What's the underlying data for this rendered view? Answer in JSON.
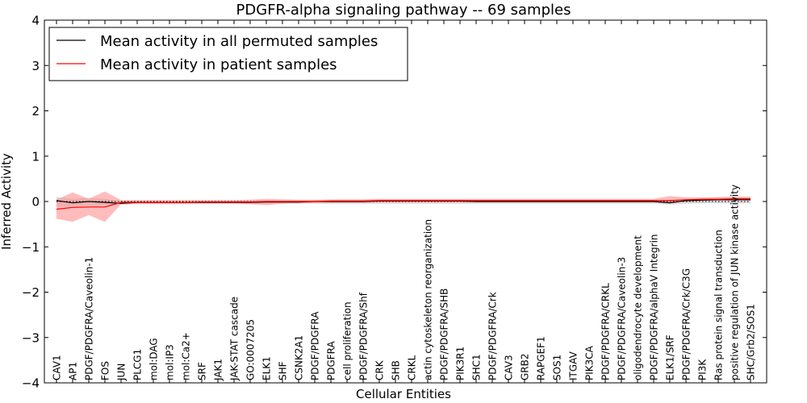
{
  "chart_data": {
    "type": "line",
    "title": "PDGFR-alpha signaling pathway -- 69 samples",
    "xlabel": "Cellular Entities",
    "ylabel": "Inferred Activity",
    "ylim": [
      -4,
      4
    ],
    "yticks": [
      -4,
      -3,
      -2,
      -1,
      0,
      1,
      2,
      3,
      4
    ],
    "ytick_labels": [
      "−4",
      "−3",
      "−2",
      "−1",
      "0",
      "1",
      "2",
      "3",
      "4"
    ],
    "grid": false,
    "legend_position": "top-left",
    "categories": [
      "CAV1",
      "AP1",
      "PDGF/PDGFRA/Caveolin-1",
      "FOS",
      "JUN",
      "PLCG1",
      "mol:DAG",
      "mol:IP3",
      "mol:Ca2+",
      "SRF",
      "JAK1",
      "JAK-STAT cascade",
      "GO:0007205",
      "ELK1",
      "SHF",
      "CSNK2A1",
      "PDGF/PDGFRA",
      "PDGFRA",
      "cell proliferation",
      "PDGF/PDGFRA/Shf",
      "CRK",
      "SHB",
      "CRKL",
      "actin cytoskeleton reorganization",
      "PDGF/PDGFRA/SHB",
      "PIK3R1",
      "SHC1",
      "PDGF/PDGFRA/Crk",
      "CAV3",
      "GRB2",
      "RAPGEF1",
      "SOS1",
      "ITGAV",
      "PIK3CA",
      "PDGF/PDGFRA/CRKL",
      "PDGF/PDGFRA/Caveolin-3",
      "oligodendrocyte development",
      "PDGF/PDGFRA/alphaV Integrin",
      "ELK1/SRF",
      "PDGF/PDGFRA/Crk/C3G",
      "PI3K",
      "Ras protein signal transduction",
      "positive regulation of JUN kinase activity",
      "SHC/Grb2/SOS1"
    ],
    "series": [
      {
        "name": "Mean activity in all permuted samples",
        "color": "#000000",
        "values": [
          0.02,
          -0.03,
          0.0,
          -0.02,
          -0.04,
          -0.02,
          -0.02,
          -0.02,
          -0.02,
          -0.02,
          -0.02,
          -0.02,
          -0.02,
          -0.01,
          -0.01,
          -0.01,
          0.0,
          0.0,
          0.0,
          0.0,
          0.01,
          0.01,
          0.01,
          0.01,
          0.01,
          0.01,
          0.0,
          0.0,
          0.0,
          0.0,
          0.0,
          0.0,
          0.0,
          0.0,
          0.0,
          0.0,
          0.0,
          0.0,
          -0.03,
          0.02,
          0.03,
          0.04,
          0.04,
          0.04
        ],
        "band_lower": [
          -0.12,
          -0.1,
          -0.08,
          -0.08,
          -0.07,
          -0.06,
          -0.06,
          -0.06,
          -0.06,
          -0.06,
          -0.06,
          -0.06,
          -0.06,
          -0.05,
          -0.05,
          -0.05,
          -0.05,
          -0.05,
          -0.05,
          -0.05,
          -0.05,
          -0.05,
          -0.05,
          -0.05,
          -0.05,
          -0.05,
          -0.05,
          -0.05,
          -0.05,
          -0.05,
          -0.05,
          -0.05,
          -0.05,
          -0.05,
          -0.05,
          -0.05,
          -0.05,
          -0.05,
          -0.07,
          -0.05,
          -0.04,
          -0.04,
          -0.04,
          -0.04
        ],
        "band_upper": [
          0.1,
          0.06,
          0.08,
          0.06,
          0.0,
          0.01,
          0.01,
          0.01,
          0.01,
          0.01,
          0.01,
          0.01,
          0.01,
          0.02,
          0.02,
          0.02,
          0.03,
          0.03,
          0.03,
          0.03,
          0.04,
          0.04,
          0.04,
          0.04,
          0.04,
          0.04,
          0.03,
          0.03,
          0.03,
          0.03,
          0.03,
          0.03,
          0.03,
          0.03,
          0.03,
          0.03,
          0.03,
          0.03,
          0.01,
          0.06,
          0.07,
          0.08,
          0.08,
          0.08
        ],
        "band_color": "#c0c0c0"
      },
      {
        "name": "Mean activity in patient samples",
        "color": "#ff0000",
        "values": [
          -0.17,
          -0.13,
          -0.12,
          -0.12,
          -0.02,
          -0.02,
          -0.02,
          -0.02,
          -0.02,
          -0.01,
          -0.01,
          -0.01,
          -0.01,
          0.0,
          0.0,
          0.0,
          0.0,
          0.01,
          0.01,
          0.01,
          0.02,
          0.02,
          0.02,
          0.02,
          0.02,
          0.02,
          0.02,
          0.02,
          0.02,
          0.02,
          0.02,
          0.02,
          0.02,
          0.02,
          0.02,
          0.02,
          0.02,
          0.02,
          0.02,
          0.04,
          0.05,
          0.05,
          0.06,
          0.06
        ],
        "band_lower": [
          -0.38,
          -0.45,
          -0.3,
          -0.45,
          -0.06,
          -0.05,
          -0.05,
          -0.05,
          -0.05,
          -0.04,
          -0.04,
          -0.04,
          -0.06,
          -0.08,
          -0.05,
          -0.04,
          -0.03,
          -0.03,
          -0.03,
          -0.03,
          -0.02,
          -0.02,
          -0.02,
          -0.02,
          -0.02,
          -0.02,
          -0.02,
          -0.02,
          -0.02,
          -0.02,
          -0.02,
          -0.02,
          -0.02,
          -0.02,
          -0.02,
          -0.02,
          -0.02,
          -0.02,
          -0.04,
          0.0,
          0.01,
          0.02,
          0.02,
          0.02
        ],
        "band_upper": [
          0.04,
          0.2,
          0.06,
          0.22,
          0.03,
          0.03,
          0.03,
          0.03,
          0.03,
          0.03,
          0.03,
          0.03,
          0.04,
          0.06,
          0.05,
          0.04,
          0.04,
          0.05,
          0.05,
          0.05,
          0.06,
          0.06,
          0.06,
          0.06,
          0.06,
          0.06,
          0.06,
          0.06,
          0.06,
          0.06,
          0.06,
          0.06,
          0.06,
          0.06,
          0.06,
          0.06,
          0.06,
          0.06,
          0.12,
          0.09,
          0.09,
          0.1,
          0.11,
          0.11
        ],
        "band_color": "#ff9090"
      }
    ]
  }
}
